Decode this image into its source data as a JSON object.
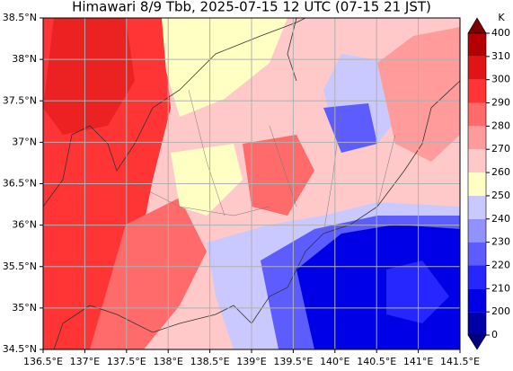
{
  "title": "Himawari 8/9 Tbb, 2025-07-15 12 UTC (07-15 21 JST)",
  "map": {
    "xlim": [
      136.5,
      141.5
    ],
    "ylim": [
      34.5,
      38.5
    ],
    "xticks": [
      {
        "value": 136.5,
        "label": "136.5°E"
      },
      {
        "value": 137,
        "label": "137°E"
      },
      {
        "value": 137.5,
        "label": "137.5°E"
      },
      {
        "value": 138,
        "label": "138°E"
      },
      {
        "value": 138.5,
        "label": "138.5°E"
      },
      {
        "value": 139,
        "label": "139°E"
      },
      {
        "value": 139.5,
        "label": "139.5°E"
      },
      {
        "value": 140,
        "label": "140°E"
      },
      {
        "value": 140.5,
        "label": "140.5°E"
      },
      {
        "value": 141,
        "label": "141°E"
      },
      {
        "value": 141.5,
        "label": "141.5°E"
      }
    ],
    "yticks": [
      {
        "value": 34.5,
        "label": "34.5°N"
      },
      {
        "value": 35,
        "label": "35°N"
      },
      {
        "value": 35.5,
        "label": "35.5°N"
      },
      {
        "value": 36,
        "label": "36°N"
      },
      {
        "value": 36.5,
        "label": "36.5°N"
      },
      {
        "value": 37,
        "label": "37°N"
      },
      {
        "value": 37.5,
        "label": "37.5°N"
      },
      {
        "value": 38,
        "label": "38°N"
      },
      {
        "value": 38.5,
        "label": "38.5°N"
      }
    ],
    "grid": true
  },
  "colorbar": {
    "unit": "K",
    "levels": [
      0,
      200,
      210,
      220,
      230,
      240,
      250,
      260,
      270,
      280,
      290,
      300,
      310,
      400
    ],
    "colors": [
      "#0000a8",
      "#0000e6",
      "#2626ff",
      "#5c5cff",
      "#9292ff",
      "#c9c9ff",
      "#ffffc4",
      "#ffc9c9",
      "#ff9b9b",
      "#ff6a6a",
      "#ff3535",
      "#e01414",
      "#b40000"
    ]
  }
}
